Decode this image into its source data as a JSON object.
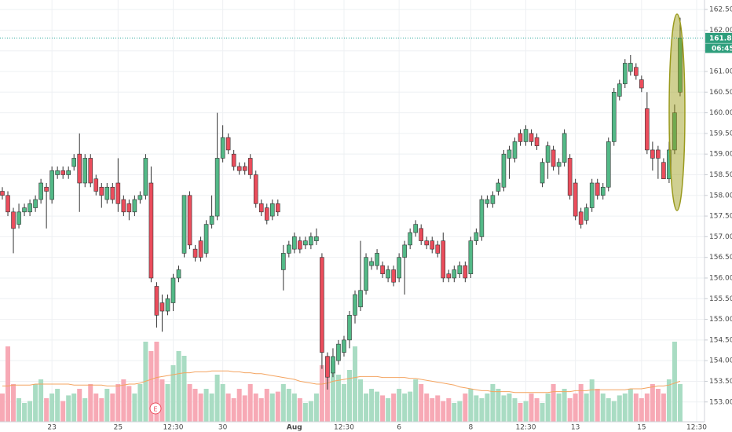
{
  "chart_data": {
    "type": "candlestick",
    "up_color": "#53b987",
    "down_color": "#eb4d5c",
    "up_volume_color": "#a9dcc3",
    "down_volume_color": "#f7a9b5",
    "volume_ma_color": "#f4a460",
    "categories": [
      null,
      null,
      null,
      null,
      null,
      null,
      null,
      null,
      null,
      "23",
      null,
      null,
      null,
      null,
      null,
      null,
      null,
      null,
      null,
      null,
      null,
      "25",
      null,
      null,
      null,
      null,
      null,
      null,
      null,
      null,
      null,
      "12:30",
      null,
      null,
      null,
      null,
      null,
      null,
      null,
      null,
      "30",
      null,
      null,
      null,
      null,
      null,
      null,
      null,
      null,
      null,
      null,
      null,
      null,
      "Aug",
      null,
      null,
      null,
      null,
      null,
      null,
      null,
      null,
      "12:30",
      null,
      null,
      null,
      null,
      null,
      null,
      null,
      null,
      null,
      "6",
      null,
      null,
      null,
      null,
      null,
      null,
      null,
      null,
      null,
      null,
      null,
      null,
      "8",
      null,
      null,
      null,
      null,
      null,
      null,
      null,
      null,
      null,
      "12:30",
      null,
      null,
      null,
      null,
      null,
      null,
      null,
      null,
      "13",
      null,
      null,
      null,
      null,
      null,
      null,
      null,
      null,
      null,
      null,
      null,
      "15",
      null,
      null,
      null,
      null,
      null,
      null,
      null,
      null,
      null,
      "12:30"
    ],
    "open": [
      158.1,
      158.0,
      157.6,
      157.3,
      157.6,
      157.6,
      157.7,
      157.9,
      158.2,
      157.9,
      158.5,
      158.6,
      158.5,
      158.7,
      159.0,
      158.3,
      158.9,
      158.4,
      158.2,
      157.9,
      158.2,
      158.3,
      157.9,
      157.8,
      157.6,
      157.9,
      158.0,
      158.3,
      155.8,
      155.4,
      155.2,
      155.4,
      156.0,
      156.6,
      158.0,
      156.7,
      156.9,
      156.6,
      157.3,
      157.5,
      158.9,
      159.4,
      159.0,
      158.7,
      158.7,
      158.9,
      158.5,
      157.8,
      157.7,
      157.5,
      157.8,
      156.2,
      156.6,
      156.7,
      156.9,
      156.8,
      156.8,
      156.9,
      156.5,
      154.1,
      153.7,
      154.0,
      154.2,
      154.5,
      155.1,
      155.3,
      155.7,
      156.3,
      156.3,
      156.3,
      156.0,
      156.2,
      156.0,
      156.5,
      156.8,
      157.1,
      157.2,
      156.9,
      156.9,
      156.8,
      156.9,
      156.1,
      156.0,
      156.1,
      156.3,
      156.1,
      156.9,
      157.0,
      157.8,
      157.8,
      158.1,
      158.2,
      158.9,
      158.9,
      159.5,
      159.3,
      159.5,
      159.4,
      158.3,
      158.8,
      159.1,
      158.7,
      158.8,
      158.9,
      158.3,
      157.6,
      157.4,
      157.7,
      158.3,
      158.0,
      158.2,
      159.3,
      160.4,
      160.7,
      161.0,
      161.1,
      160.8,
      160.1,
      159.1,
      159.1,
      158.8,
      158.4,
      159.1,
      160.5,
      null,
      null,
      null
    ],
    "high": [
      158.2,
      158.1,
      157.7,
      157.8,
      157.8,
      157.9,
      158.0,
      158.4,
      158.3,
      158.7,
      158.7,
      158.7,
      158.7,
      159.0,
      159.5,
      159.0,
      159.0,
      158.5,
      158.3,
      158.3,
      158.3,
      158.9,
      158.0,
      157.9,
      158.0,
      158.1,
      159.0,
      158.7,
      155.9,
      155.6,
      155.6,
      156.1,
      156.3,
      158.0,
      158.1,
      156.8,
      157.0,
      157.4,
      158.0,
      160.0,
      159.7,
      159.5,
      159.1,
      158.8,
      158.8,
      159.0,
      158.6,
      157.9,
      157.8,
      157.9,
      157.9,
      156.8,
      156.9,
      157.1,
      157.0,
      157.0,
      157.1,
      157.2,
      156.6,
      154.2,
      154.3,
      154.5,
      154.6,
      155.2,
      155.7,
      156.9,
      156.6,
      156.5,
      156.7,
      156.4,
      156.3,
      156.3,
      156.6,
      156.9,
      157.2,
      157.4,
      157.3,
      157.0,
      157.0,
      156.9,
      157.1,
      156.2,
      156.3,
      156.4,
      156.4,
      157.0,
      157.2,
      158.0,
      158.0,
      158.1,
      158.4,
      159.1,
      159.2,
      159.4,
      159.6,
      159.7,
      159.6,
      159.5,
      158.9,
      159.3,
      159.2,
      158.9,
      159.6,
      159.0,
      158.4,
      157.7,
      157.8,
      158.4,
      158.4,
      158.3,
      159.4,
      160.6,
      160.8,
      161.3,
      161.4,
      161.2,
      160.9,
      160.5,
      159.3,
      159.2,
      158.9,
      159.3,
      160.2,
      162.3,
      null,
      null,
      null
    ],
    "low": [
      157.9,
      157.5,
      156.6,
      157.2,
      157.5,
      157.5,
      157.6,
      157.8,
      157.2,
      157.8,
      158.4,
      158.4,
      158.4,
      158.6,
      157.6,
      158.2,
      158.2,
      158.0,
      157.7,
      157.8,
      157.8,
      157.6,
      157.5,
      157.4,
      157.5,
      157.8,
      157.9,
      155.9,
      154.8,
      154.7,
      155.1,
      155.2,
      155.9,
      156.5,
      156.7,
      156.4,
      156.4,
      156.5,
      157.2,
      157.4,
      158.8,
      159.0,
      158.6,
      158.5,
      158.5,
      158.4,
      157.7,
      157.5,
      157.3,
      157.4,
      157.5,
      155.7,
      156.5,
      156.6,
      156.6,
      156.7,
      156.7,
      156.8,
      153.8,
      153.3,
      153.6,
      153.9,
      154.1,
      154.3,
      154.9,
      155.2,
      155.6,
      156.2,
      156.2,
      156.0,
      155.9,
      155.8,
      155.9,
      155.6,
      156.7,
      157.0,
      156.8,
      156.7,
      156.6,
      156.5,
      155.9,
      155.9,
      155.9,
      156.0,
      155.9,
      156.0,
      156.8,
      156.9,
      157.7,
      157.7,
      158.0,
      158.1,
      158.4,
      158.8,
      159.2,
      159.2,
      159.2,
      159.1,
      158.2,
      158.4,
      158.6,
      158.5,
      158.7,
      157.9,
      157.4,
      157.2,
      157.3,
      157.6,
      157.9,
      157.9,
      158.1,
      159.2,
      160.3,
      160.6,
      160.9,
      160.8,
      160.5,
      159.0,
      158.6,
      158.4,
      158.4,
      158.3,
      159.0,
      160.4,
      null,
      null,
      null
    ],
    "close": [
      158.0,
      157.6,
      157.2,
      157.6,
      157.7,
      157.8,
      157.9,
      158.3,
      158.1,
      158.6,
      158.6,
      158.5,
      158.6,
      158.9,
      158.3,
      158.9,
      158.3,
      158.1,
      158.0,
      158.2,
      157.9,
      157.8,
      157.6,
      157.6,
      157.9,
      158.0,
      158.9,
      156.0,
      155.1,
      155.2,
      155.5,
      156.0,
      156.2,
      158.0,
      156.8,
      156.5,
      156.5,
      157.3,
      157.5,
      158.9,
      159.4,
      159.1,
      158.7,
      158.6,
      158.6,
      158.5,
      157.8,
      157.6,
      157.4,
      157.8,
      157.6,
      156.6,
      156.8,
      157.0,
      156.7,
      156.9,
      157.0,
      157.0,
      154.2,
      153.6,
      154.1,
      154.4,
      154.5,
      155.1,
      155.6,
      155.7,
      156.5,
      156.4,
      156.6,
      156.1,
      156.2,
      155.9,
      156.5,
      156.8,
      157.1,
      157.3,
      156.9,
      156.8,
      156.7,
      156.6,
      156.0,
      156.0,
      156.2,
      156.3,
      156.0,
      156.9,
      157.1,
      157.9,
      157.9,
      158.0,
      158.3,
      159.0,
      159.1,
      159.3,
      159.3,
      159.6,
      159.3,
      159.2,
      158.8,
      159.2,
      158.7,
      158.8,
      159.5,
      158.0,
      157.5,
      157.3,
      157.7,
      158.3,
      158.0,
      158.2,
      159.3,
      160.5,
      160.7,
      161.2,
      161.2,
      160.9,
      160.6,
      159.1,
      158.9,
      158.9,
      158.4,
      159.1,
      160.0,
      161.81,
      null,
      null,
      null
    ],
    "volume": [
      30,
      80,
      40,
      25,
      20,
      22,
      40,
      45,
      25,
      30,
      35,
      22,
      28,
      30,
      35,
      25,
      40,
      30,
      25,
      35,
      30,
      40,
      45,
      38,
      30,
      40,
      85,
      75,
      85,
      45,
      40,
      60,
      75,
      70,
      40,
      35,
      30,
      35,
      30,
      50,
      40,
      30,
      25,
      35,
      28,
      40,
      30,
      25,
      35,
      30,
      32,
      40,
      35,
      30,
      25,
      20,
      22,
      30,
      60,
      70,
      65,
      50,
      40,
      55,
      80,
      45,
      30,
      35,
      32,
      28,
      25,
      30,
      35,
      30,
      32,
      45,
      40,
      30,
      25,
      28,
      22,
      25,
      20,
      22,
      30,
      35,
      28,
      25,
      30,
      40,
      35,
      28,
      30,
      25,
      20,
      22,
      30,
      25,
      20,
      30,
      40,
      30,
      35,
      25,
      30,
      40,
      30,
      45,
      35,
      30,
      25,
      22,
      28,
      30,
      35,
      30,
      25,
      30,
      40,
      35,
      30,
      45,
      85,
      40,
      null,
      null,
      null
    ],
    "volume_ma": [
      38,
      38,
      39,
      39,
      39,
      39,
      40,
      40,
      40,
      40,
      40,
      40,
      40,
      39,
      39,
      39,
      39,
      39,
      39,
      38,
      38,
      38,
      39,
      40,
      40,
      41,
      43,
      45,
      47,
      48,
      49,
      50,
      51,
      52,
      52,
      53,
      53,
      53,
      54,
      54,
      54,
      54,
      53,
      53,
      52,
      52,
      51,
      51,
      50,
      49,
      48,
      47,
      46,
      45,
      43,
      42,
      41,
      40,
      40,
      41,
      43,
      44,
      45,
      46,
      47,
      48,
      48,
      48,
      48,
      47,
      47,
      47,
      47,
      47,
      46,
      46,
      45,
      44,
      43,
      42,
      41,
      40,
      39,
      37,
      36,
      35,
      34,
      33,
      33,
      32,
      32,
      32,
      32,
      31,
      31,
      31,
      31,
      31,
      31,
      31,
      32,
      32,
      32,
      32,
      33,
      33,
      33,
      34,
      34,
      34,
      34,
      34,
      34,
      34,
      35,
      35,
      35,
      36,
      37,
      38,
      38,
      39,
      41,
      43,
      null,
      null,
      null
    ],
    "ylim": [
      152.52,
      162.73
    ],
    "yticks": [
      {
        "value": 153,
        "label": "153.00"
      },
      {
        "value": 153.5,
        "label": "153.50"
      },
      {
        "value": 154,
        "label": "154.00"
      },
      {
        "value": 154.5,
        "label": "154.50"
      },
      {
        "value": 155,
        "label": "155.00"
      },
      {
        "value": 155.5,
        "label": "155.50"
      },
      {
        "value": 156,
        "label": "156.00"
      },
      {
        "value": 156.5,
        "label": "156.50"
      },
      {
        "value": 157,
        "label": "157.00"
      },
      {
        "value": 157.5,
        "label": "157.50"
      },
      {
        "value": 158,
        "label": "158.00"
      },
      {
        "value": 158.5,
        "label": "158.50"
      },
      {
        "value": 159,
        "label": "159.00"
      },
      {
        "value": 159.5,
        "label": "159.50"
      },
      {
        "value": 160,
        "label": "160.00"
      },
      {
        "value": 160.5,
        "label": "160.50"
      },
      {
        "value": 161,
        "label": "161.00"
      },
      {
        "value": 161.5,
        "label": "161.50"
      },
      {
        "value": 162,
        "label": "162.00"
      },
      {
        "value": 162.5,
        "label": "162.50"
      }
    ],
    "volume_ylim": [
      0,
      100
    ],
    "grid": true,
    "last_price": 161.81,
    "countdown": "06:45",
    "event_marker": "E"
  }
}
